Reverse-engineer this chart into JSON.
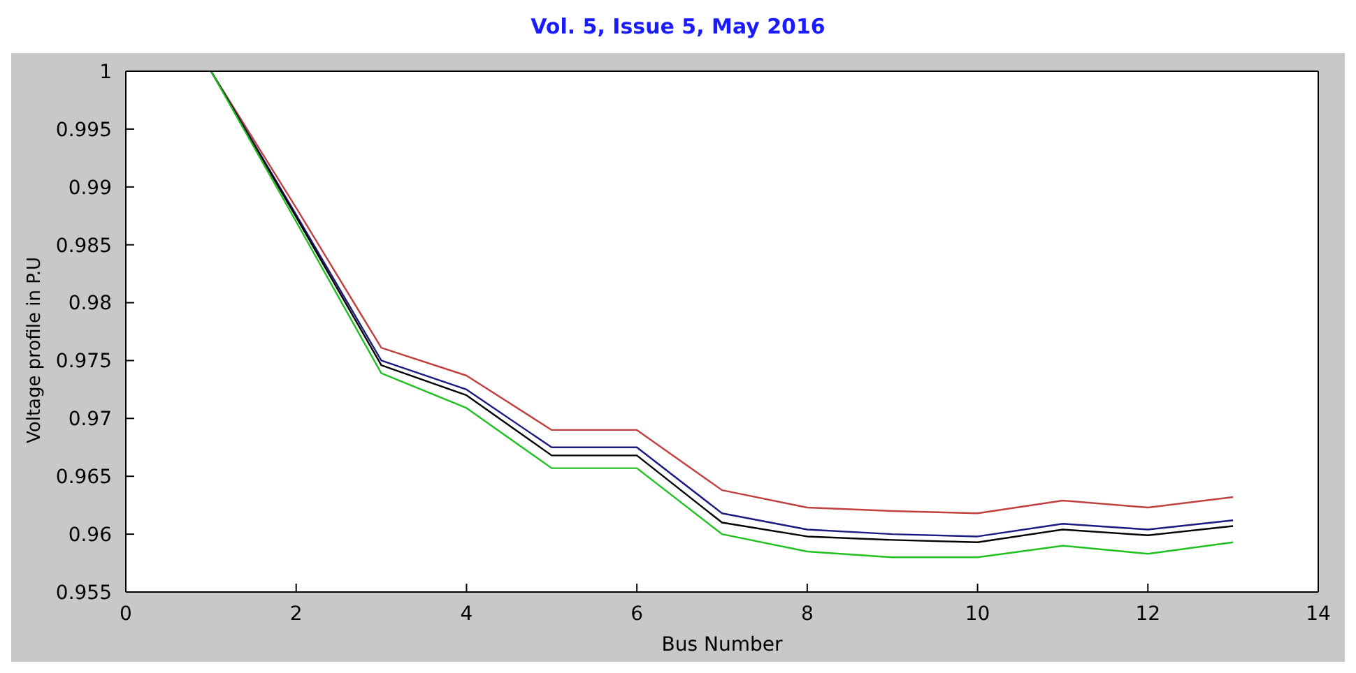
{
  "chart_data": {
    "type": "line",
    "title": "Vol. 5, Issue 5, May 2016",
    "xlabel": "Bus Number",
    "ylabel": "Voltage profile in P.U",
    "x": [
      1,
      2,
      3,
      4,
      5,
      6,
      7,
      8,
      9,
      10,
      11,
      12,
      13
    ],
    "series": [
      {
        "color": "#c04040",
        "values": [
          1.0,
          0.9882,
          0.9761,
          0.9737,
          0.969,
          0.969,
          0.9638,
          0.9623,
          0.962,
          0.9618,
          0.9629,
          0.9623,
          0.9632
        ]
      },
      {
        "color": "#1a1a80",
        "values": [
          1.0,
          0.9876,
          0.975,
          0.9725,
          0.9675,
          0.9675,
          0.9618,
          0.9604,
          0.96,
          0.9598,
          0.9609,
          0.9604,
          0.9612
        ]
      },
      {
        "color": "#000000",
        "values": [
          1.0,
          0.9874,
          0.9746,
          0.972,
          0.9668,
          0.9668,
          0.961,
          0.9598,
          0.9595,
          0.9593,
          0.9604,
          0.9599,
          0.9607
        ]
      },
      {
        "color": "#20c020",
        "values": [
          1.0,
          0.987,
          0.9739,
          0.9709,
          0.9657,
          0.9657,
          0.96,
          0.9585,
          0.958,
          0.958,
          0.959,
          0.9583,
          0.9593
        ]
      }
    ],
    "xlim": [
      0,
      14
    ],
    "xticks": [
      0,
      2,
      4,
      6,
      8,
      10,
      12,
      14
    ],
    "ylim": [
      0.955,
      1
    ],
    "yticks": [
      0.955,
      0.96,
      0.965,
      0.97,
      0.975,
      0.98,
      0.985,
      0.99,
      0.995,
      1
    ],
    "grid": false,
    "legend": false,
    "marker": "none",
    "line_style": "solid"
  }
}
